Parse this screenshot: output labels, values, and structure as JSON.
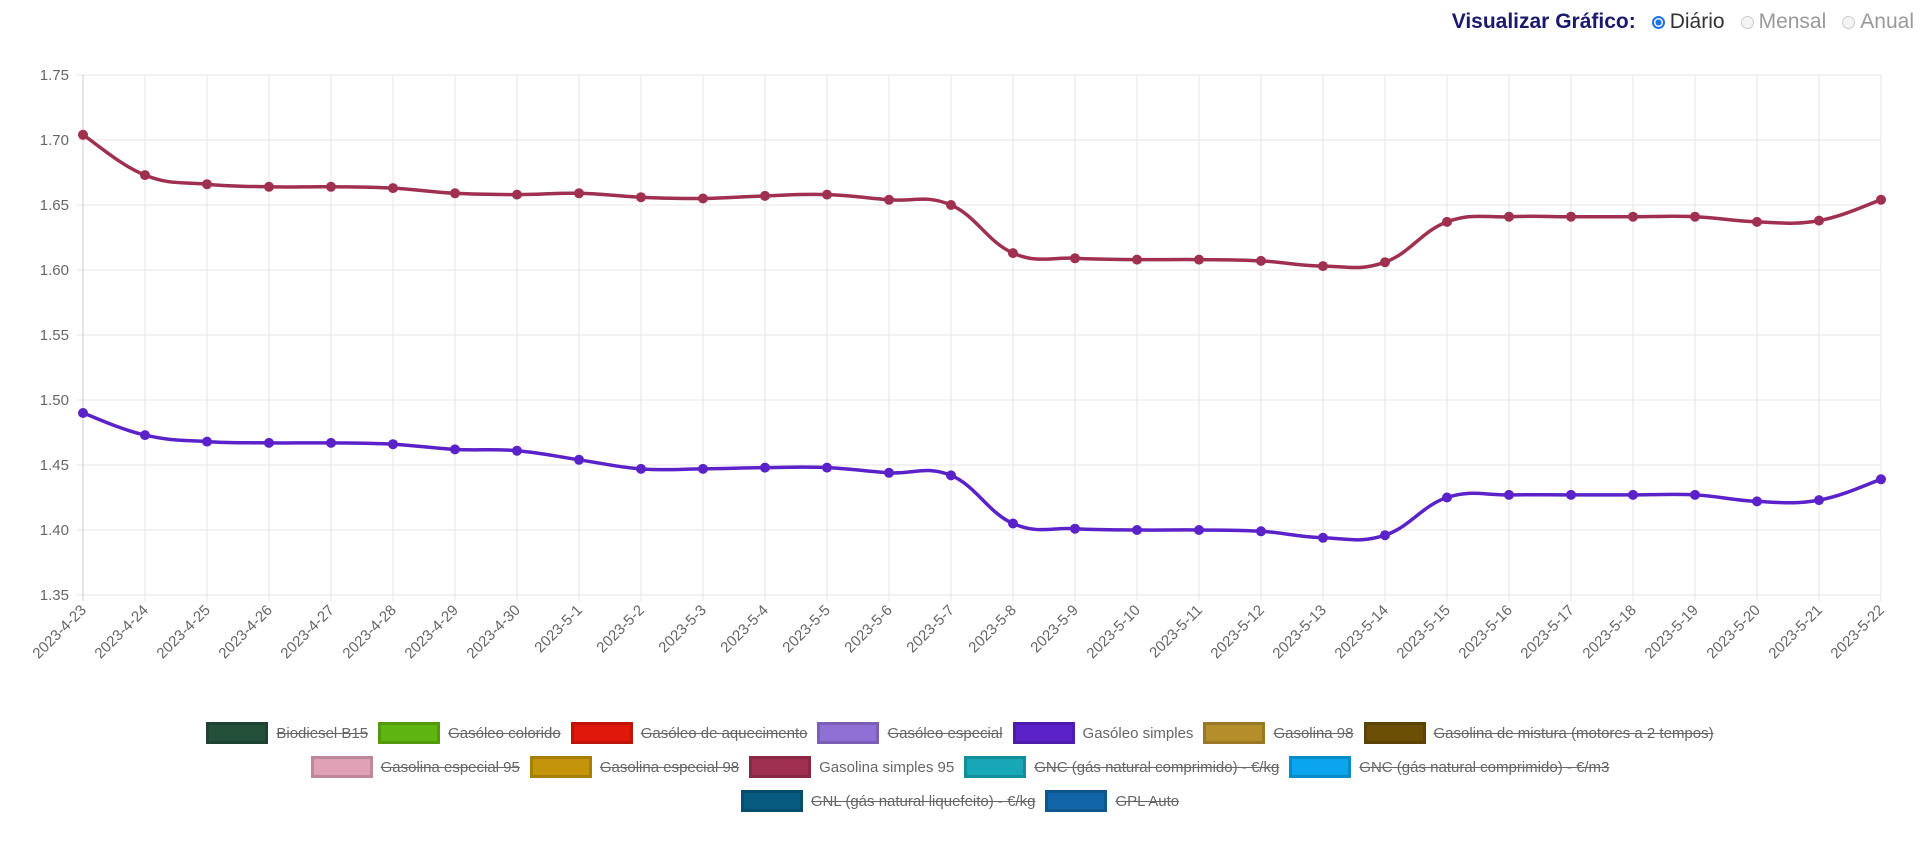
{
  "controls": {
    "title": "Visualizar Gráfico:",
    "options": [
      {
        "label": "Diário",
        "selected": true
      },
      {
        "label": "Mensal",
        "selected": false
      },
      {
        "label": "Anual",
        "selected": false
      }
    ]
  },
  "chart_data": {
    "type": "line",
    "ylim": [
      1.35,
      1.75
    ],
    "yticks": [
      "1.75",
      "1.70",
      "1.65",
      "1.60",
      "1.55",
      "1.50",
      "1.45",
      "1.40",
      "1.35"
    ],
    "grid": true,
    "legend_position": "bottom",
    "categories": [
      "2023-4-23",
      "2023-4-24",
      "2023-4-25",
      "2023-4-26",
      "2023-4-27",
      "2023-4-28",
      "2023-4-29",
      "2023-4-30",
      "2023-5-1",
      "2023-5-2",
      "2023-5-3",
      "2023-5-4",
      "2023-5-5",
      "2023-5-6",
      "2023-5-7",
      "2023-5-8",
      "2023-5-9",
      "2023-5-10",
      "2023-5-11",
      "2023-5-12",
      "2023-5-13",
      "2023-5-14",
      "2023-5-15",
      "2023-5-16",
      "2023-5-17",
      "2023-5-18",
      "2023-5-19",
      "2023-5-20",
      "2023-5-21",
      "2023-5-22"
    ],
    "series": [
      {
        "name": "Gasolina simples 95",
        "color": "#a0304f",
        "values": [
          1.704,
          1.673,
          1.666,
          1.664,
          1.664,
          1.663,
          1.659,
          1.658,
          1.659,
          1.656,
          1.655,
          1.657,
          1.658,
          1.654,
          1.65,
          1.613,
          1.609,
          1.608,
          1.608,
          1.607,
          1.603,
          1.606,
          1.637,
          1.641,
          1.641,
          1.641,
          1.641,
          1.637,
          1.638,
          1.654
        ]
      },
      {
        "name": "Gasóleo simples",
        "color": "#5b22c9",
        "values": [
          1.49,
          1.473,
          1.468,
          1.467,
          1.467,
          1.466,
          1.462,
          1.461,
          1.454,
          1.447,
          1.447,
          1.448,
          1.448,
          1.444,
          1.442,
          1.405,
          1.401,
          1.4,
          1.4,
          1.399,
          1.394,
          1.396,
          1.425,
          1.427,
          1.427,
          1.427,
          1.427,
          1.422,
          1.423,
          1.439
        ]
      }
    ],
    "legend": [
      [
        {
          "label": "Biodiesel B15",
          "color": "#24503a",
          "hidden": true
        },
        {
          "label": "Gasóleo colorido",
          "color": "#5fb50f",
          "hidden": true
        },
        {
          "label": "Gasóleo de aquecimento",
          "color": "#e0180a",
          "hidden": true
        },
        {
          "label": "Gasóleo especial",
          "color": "#9170d6",
          "hidden": true
        },
        {
          "label": "Gasóleo simples",
          "color": "#5b22c9",
          "hidden": false
        },
        {
          "label": "Gasolina 98",
          "color": "#b38e2b",
          "hidden": true
        },
        {
          "label": "Gasolina de mistura (motores a 2 tempos)",
          "color": "#6b4f05",
          "hidden": true
        }
      ],
      [
        {
          "label": "Gasolina especial 95",
          "color": "#e0a0b6",
          "hidden": true
        },
        {
          "label": "Gasolina especial 98",
          "color": "#c4940a",
          "hidden": true
        },
        {
          "label": "Gasolina simples 95",
          "color": "#a0304f",
          "hidden": false
        },
        {
          "label": "GNC (gás natural comprimido) - €/kg",
          "color": "#17a7b5",
          "hidden": true
        },
        {
          "label": "GNC (gás natural comprimido) - €/m3",
          "color": "#0aa5ec",
          "hidden": true
        }
      ],
      [
        {
          "label": "GNL (gás natural liquefeito) - €/kg",
          "color": "#065a80",
          "hidden": true
        },
        {
          "label": "GPL Auto",
          "color": "#1265a6",
          "hidden": true
        }
      ]
    ]
  }
}
